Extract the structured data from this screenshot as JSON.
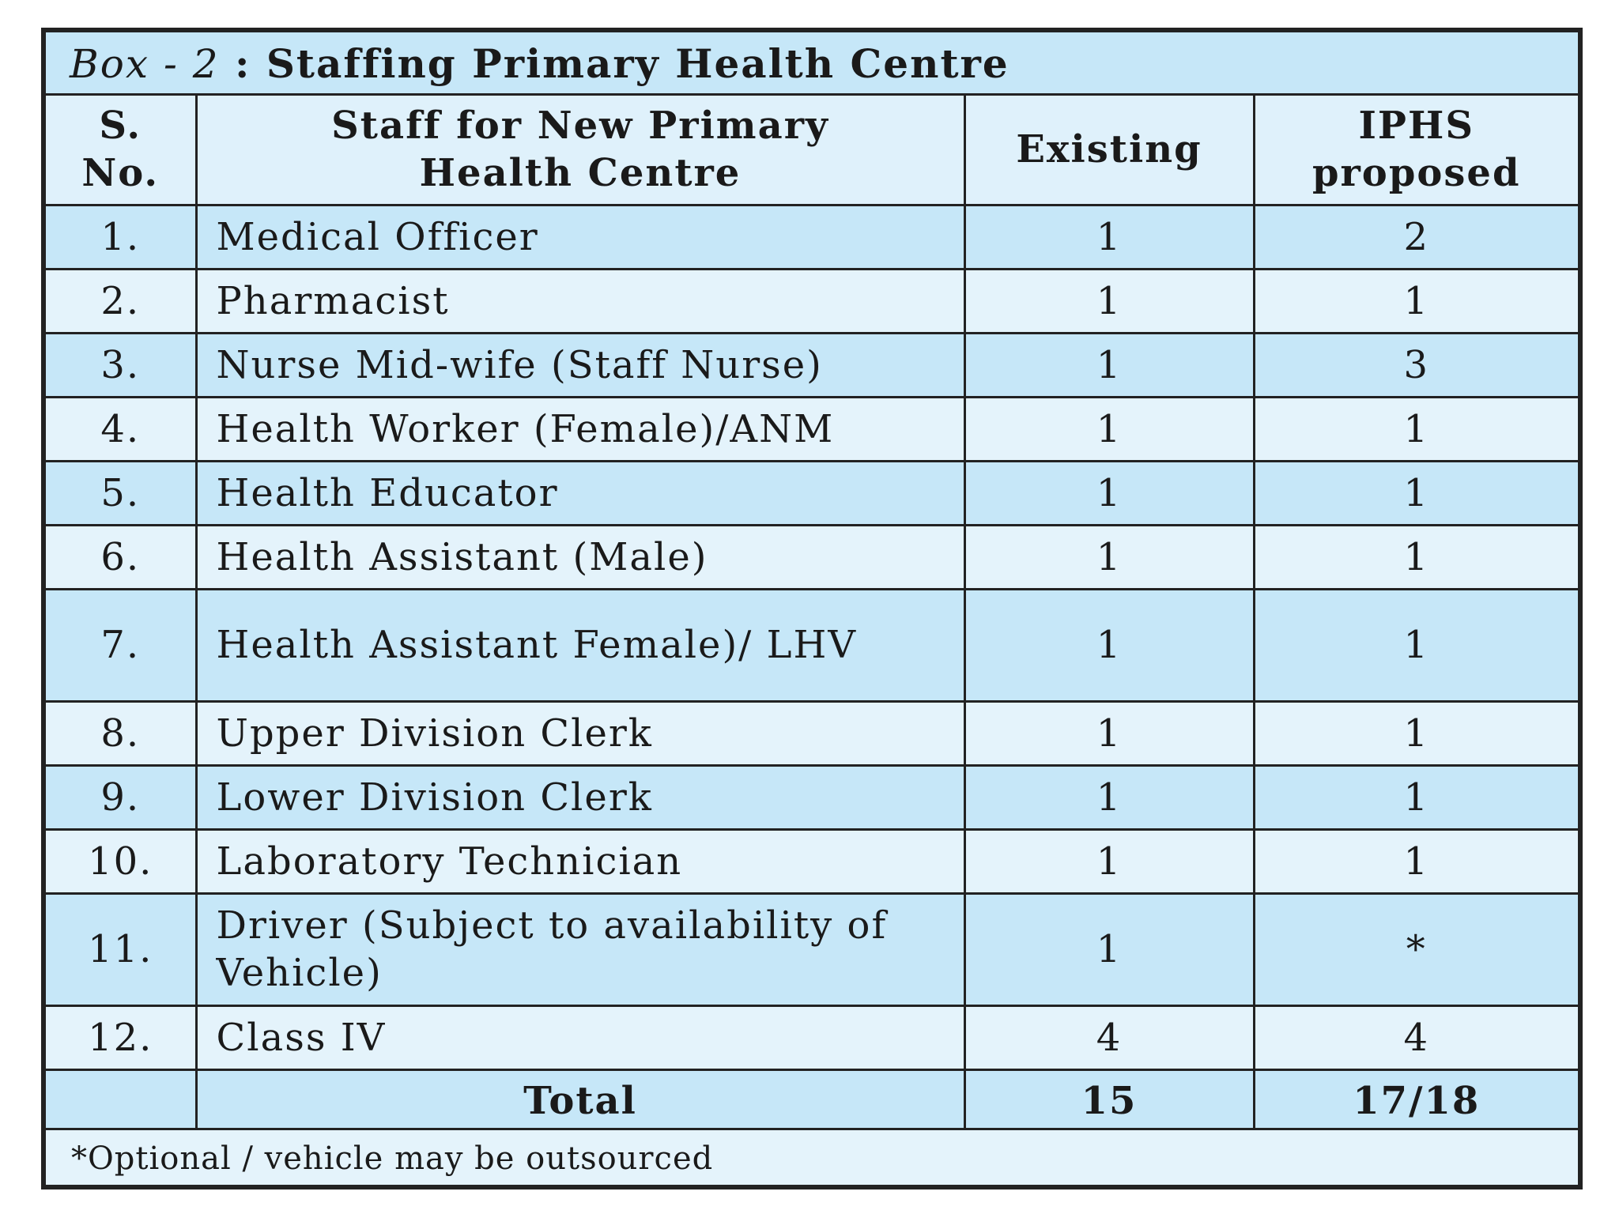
{
  "box": {
    "label": "Box - 2",
    "separator": " : ",
    "title": "Staffing Primary Health Centre"
  },
  "headers": {
    "sno": "S. No.",
    "staff": "Staff for New Primary Health Centre",
    "existing": "Existing",
    "iphs": "IPHS proposed"
  },
  "rows": [
    {
      "sno": "1.",
      "staff": "Medical Officer",
      "existing": "1",
      "iphs": "2"
    },
    {
      "sno": "2.",
      "staff": "Pharmacist",
      "existing": "1",
      "iphs": "1"
    },
    {
      "sno": "3.",
      "staff": "Nurse Mid-wife (Staff Nurse)",
      "existing": "1",
      "iphs": "3"
    },
    {
      "sno": "4.",
      "staff": "Health Worker (Female)/ANM",
      "existing": "1",
      "iphs": "1"
    },
    {
      "sno": "5.",
      "staff": "Health Educator",
      "existing": "1",
      "iphs": "1"
    },
    {
      "sno": "6.",
      "staff": "Health Assistant (Male)",
      "existing": "1",
      "iphs": "1"
    },
    {
      "sno": "7.",
      "staff": "Health Assistant Female)/ LHV",
      "existing": "1",
      "iphs": "1"
    },
    {
      "sno": "8.",
      "staff": "Upper Division Clerk",
      "existing": "1",
      "iphs": "1"
    },
    {
      "sno": "9.",
      "staff": "Lower Division Clerk",
      "existing": "1",
      "iphs": "1"
    },
    {
      "sno": "10.",
      "staff": "Laboratory Technician",
      "existing": "1",
      "iphs": "1"
    },
    {
      "sno": "11.",
      "staff": "Driver (Subject to availability of Vehicle)",
      "existing": "1",
      "iphs": "*"
    },
    {
      "sno": "12.",
      "staff": "Class IV",
      "existing": "4",
      "iphs": "4"
    }
  ],
  "total": {
    "label": "Total",
    "existing": "15",
    "iphs": "17/18"
  },
  "footnote": "*Optional / vehicle may be outsourced",
  "colors": {
    "header_band": "#c6e7f8",
    "light_band": "#e4f3fb",
    "border": "#222222"
  }
}
